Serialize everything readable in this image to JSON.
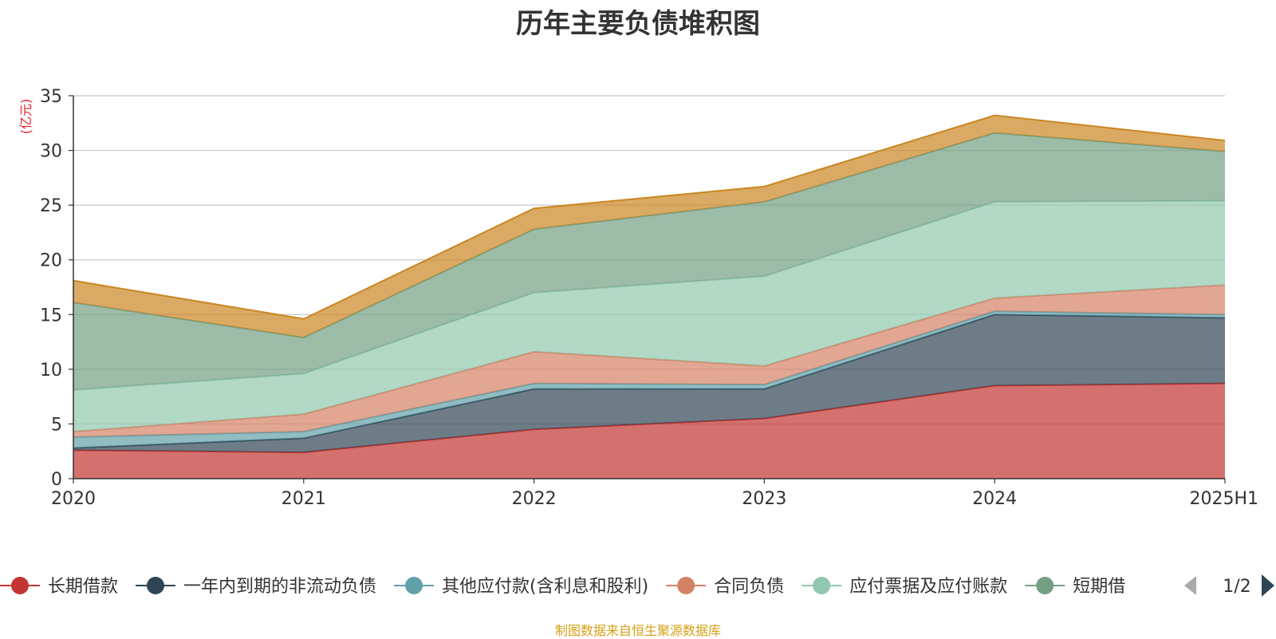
{
  "title": "历年主要负债堆积图",
  "footer": "制图数据来自恒生聚源数据库",
  "chart_data": {
    "type": "area",
    "stacked": true,
    "title": "历年主要负债堆积图",
    "ylabel": "(亿元)",
    "xlabel": "",
    "ylim": [
      0,
      35
    ],
    "yticks": [
      0,
      5,
      10,
      15,
      20,
      25,
      30,
      35
    ],
    "grid": true,
    "legend_position": "bottom",
    "categories": [
      "2020",
      "2021",
      "2022",
      "2023",
      "2024",
      "2025H1"
    ],
    "series": [
      {
        "name": "长期借款",
        "color": "#c23531",
        "values": [
          2.6,
          2.4,
          4.5,
          5.5,
          8.5,
          8.7
        ]
      },
      {
        "name": "一年内到期的非流动负债",
        "color": "#2f4554",
        "values": [
          0.2,
          1.3,
          3.7,
          2.7,
          6.5,
          6.0
        ]
      },
      {
        "name": "其他应付款(含利息和股利)",
        "color": "#61a0a8",
        "values": [
          1.0,
          0.6,
          0.5,
          0.4,
          0.3,
          0.3
        ]
      },
      {
        "name": "合同负债",
        "color": "#d48265",
        "values": [
          0.5,
          1.6,
          2.9,
          1.7,
          1.2,
          2.7
        ]
      },
      {
        "name": "应付票据及应付账款",
        "color": "#91c7ae",
        "values": [
          3.8,
          3.7,
          5.4,
          8.2,
          8.8,
          7.7
        ]
      },
      {
        "name": "短期借款",
        "color": "#749f83",
        "values": [
          8.0,
          3.3,
          5.8,
          6.8,
          6.3,
          4.5
        ]
      },
      {
        "name": "",
        "color": "#ca8622",
        "values": [
          2.0,
          1.7,
          1.9,
          1.4,
          1.6,
          1.0
        ]
      }
    ],
    "legend": {
      "visible_items": [
        "长期借款",
        "一年内到期的非流动负债",
        "其他应付款(含利息和股利)",
        "合同负债",
        "应付票据及应付账款",
        "短期借"
      ],
      "page": "1/2"
    }
  }
}
